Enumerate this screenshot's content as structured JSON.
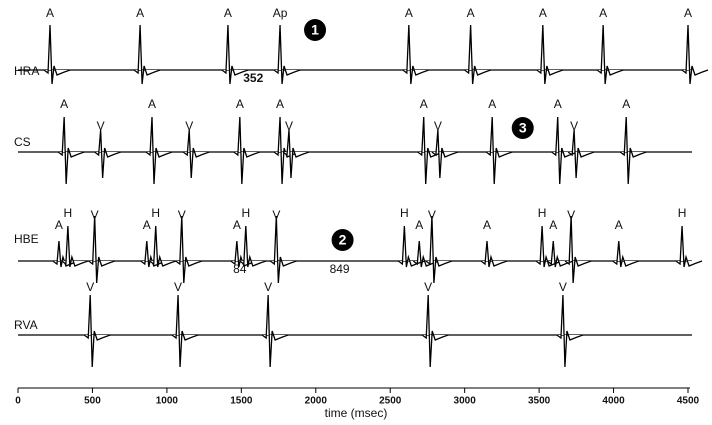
{
  "chart_data": {
    "type": "tracing",
    "xlabel": "time (msec)",
    "xlim": [
      0,
      4500
    ],
    "xticks": [
      0,
      500,
      1000,
      1500,
      2000,
      2500,
      3000,
      3500,
      4000,
      4500
    ],
    "channels": [
      {
        "name": "HRA",
        "events": [
          {
            "label": "A",
            "x": 215
          },
          {
            "label": "A",
            "x": 820
          },
          {
            "label": "A",
            "x": 1410
          },
          {
            "label": "Ap",
            "x": 1760
          },
          {
            "label": "A",
            "x": 2625
          },
          {
            "label": "A",
            "x": 3040
          },
          {
            "label": "A",
            "x": 3525
          },
          {
            "label": "A",
            "x": 3930
          },
          {
            "label": "A",
            "x": 4500
          }
        ],
        "notes": [
          {
            "label": "352",
            "x": 1580
          }
        ],
        "markers": [
          {
            "label": "1",
            "x": 1995
          }
        ]
      },
      {
        "name": "CS",
        "events": [
          {
            "label": "A",
            "x": 310
          },
          {
            "label": "V",
            "x": 555
          },
          {
            "label": "A",
            "x": 900
          },
          {
            "label": "V",
            "x": 1150
          },
          {
            "label": "A",
            "x": 1490
          },
          {
            "label": "A",
            "x": 1760
          },
          {
            "label": "V",
            "x": 1820
          },
          {
            "label": "A",
            "x": 2725
          },
          {
            "label": "V",
            "x": 2820
          },
          {
            "label": "A",
            "x": 3185
          },
          {
            "label": "A",
            "x": 3625
          },
          {
            "label": "V",
            "x": 3735
          },
          {
            "label": "A",
            "x": 4085
          }
        ],
        "notes": [],
        "markers": [
          {
            "label": "3",
            "x": 3390
          }
        ]
      },
      {
        "name": "HBE",
        "events": [
          {
            "label": "A",
            "x": 275
          },
          {
            "label": "H",
            "x": 335
          },
          {
            "label": "V",
            "x": 515
          },
          {
            "label": "A",
            "x": 865
          },
          {
            "label": "H",
            "x": 925
          },
          {
            "label": "V",
            "x": 1100
          },
          {
            "label": "A",
            "x": 1470
          },
          {
            "label": "H",
            "x": 1530
          },
          {
            "label": "V",
            "x": 1735
          },
          {
            "label": "H",
            "x": 2595
          },
          {
            "label": "A",
            "x": 2695
          },
          {
            "label": "V",
            "x": 2780
          },
          {
            "label": "A",
            "x": 3150
          },
          {
            "label": "H",
            "x": 3520
          },
          {
            "label": "A",
            "x": 3595
          },
          {
            "label": "V",
            "x": 3715
          },
          {
            "label": "A",
            "x": 4035
          },
          {
            "label": "H",
            "x": 4460
          }
        ],
        "notes": [
          {
            "label": "84",
            "x": 1490
          },
          {
            "label": "849",
            "x": 2160
          }
        ],
        "markers": [
          {
            "label": "2",
            "x": 2180
          }
        ]
      },
      {
        "name": "RVA",
        "events": [
          {
            "label": "V",
            "x": 485
          },
          {
            "label": "V",
            "x": 1075
          },
          {
            "label": "V",
            "x": 1680
          },
          {
            "label": "V",
            "x": 2755
          },
          {
            "label": "V",
            "x": 3660
          }
        ],
        "notes": [],
        "markers": []
      }
    ]
  }
}
